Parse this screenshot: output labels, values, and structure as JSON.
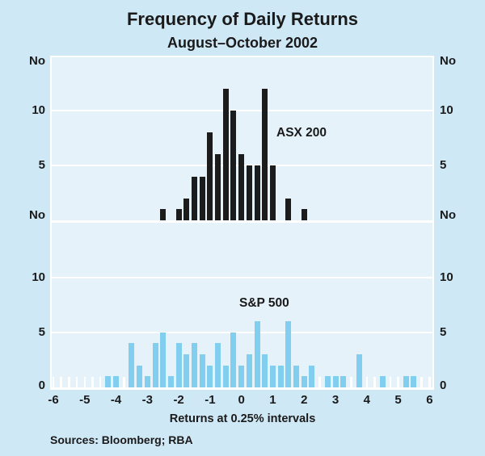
{
  "title": "Frequency of Daily Returns",
  "subtitle": "August–October 2002",
  "x_axis": {
    "label": "Returns at 0.25% intervals",
    "tick_labels": [
      "-6",
      "-5",
      "-4",
      "-3",
      "-2",
      "-1",
      "0",
      "1",
      "2",
      "3",
      "4",
      "5",
      "6"
    ]
  },
  "y_axis": {
    "unit_label": "No",
    "left_labels": [
      "No",
      "10",
      "5",
      "No",
      "10",
      "5",
      "0"
    ],
    "right_labels": [
      "No",
      "10",
      "5",
      "No",
      "10",
      "5",
      "0"
    ]
  },
  "source_note": "Sources: Bloomberg; RBA",
  "colors": {
    "background": "#cfe8f6",
    "plot_background": "#e6f2fa",
    "grid": "#ffffff",
    "asx200_bar": "#1c1c1c",
    "sp500_bar": "#82ceef",
    "text": "#1a1a1a"
  },
  "chart_data": {
    "type": "bar",
    "title": "Frequency of Daily Returns",
    "subtitle": "August–October 2002",
    "xlabel": "Returns at 0.25% intervals",
    "ylabel": "No",
    "grid": "on",
    "legend": "inline-labels",
    "x_start": -6,
    "x_end": 6,
    "bin_width": 0.25,
    "x_tick_values": [
      -6,
      -5,
      -4,
      -3,
      -2,
      -1,
      0,
      1,
      2,
      3,
      4,
      5,
      6
    ],
    "panels": [
      {
        "label": "ASX 200",
        "color": "#1c1c1c",
        "ylim": [
          0,
          15
        ],
        "gridlines": [
          5,
          10
        ],
        "values": [
          0,
          0,
          0,
          0,
          0,
          0,
          0,
          0,
          0,
          0,
          0,
          0,
          0,
          0,
          1,
          0,
          1,
          2,
          4,
          4,
          8,
          6,
          12,
          10,
          6,
          5,
          5,
          12,
          5,
          0,
          2,
          0,
          1,
          0,
          0,
          0,
          0,
          0,
          0,
          0,
          0,
          0,
          0,
          0,
          0,
          0,
          0,
          0,
          0
        ]
      },
      {
        "label": "S&P 500",
        "color": "#82ceef",
        "ylim": [
          0,
          15
        ],
        "gridlines": [
          5,
          10
        ],
        "values": [
          0,
          0,
          0,
          0,
          0,
          0,
          0,
          1,
          1,
          0,
          4,
          2,
          1,
          4,
          5,
          1,
          4,
          3,
          4,
          3,
          2,
          4,
          2,
          5,
          2,
          3,
          6,
          3,
          2,
          2,
          6,
          2,
          1,
          2,
          0,
          1,
          1,
          1,
          0,
          3,
          0,
          0,
          1,
          0,
          0,
          1,
          1,
          0,
          0
        ]
      }
    ]
  }
}
